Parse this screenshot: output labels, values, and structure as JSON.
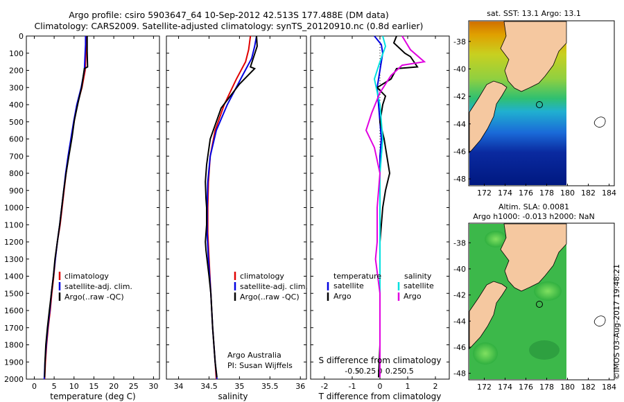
{
  "title_line1": "Argo profile: csiro 5903647_64 10-Sep-2012 42.513S 177.488E (DM data)",
  "title_line2": "Climatology: CARS2009. Satellite-adjusted climatology: synTS_20120910.nc (0.8d earlier)",
  "watermark": "©IMOS 03-Aug-2017 19:48:21",
  "colors": {
    "climatology": "#e00000",
    "satellite": "#0000e0",
    "argo": "#000000",
    "sal_satellite": "#00e0e0",
    "sal_argo": "#e000e0",
    "temp_clim": "#e00000"
  },
  "chart_data": [
    {
      "type": "line",
      "name": "temperature",
      "xlabel": "temperature (deg C)",
      "ylabel": "",
      "xlim": [
        -2,
        31.5
      ],
      "ylim": [
        2000,
        0
      ],
      "xticks": [
        "0",
        "5",
        "10",
        "15",
        "20",
        "25",
        "30"
      ],
      "xtick_values": [
        0,
        5,
        10,
        15,
        20,
        25,
        30
      ],
      "yticks": [
        "0",
        "100",
        "200",
        "300",
        "400",
        "500",
        "600",
        "700",
        "800",
        "900",
        "1000",
        "1100",
        "1200",
        "1300",
        "1400",
        "1500",
        "1600",
        "1700",
        "1800",
        "1900",
        "2000"
      ],
      "ytick_values": [
        0,
        100,
        200,
        300,
        400,
        500,
        600,
        700,
        800,
        900,
        1000,
        1100,
        1200,
        1300,
        1400,
        1500,
        1600,
        1700,
        1800,
        1900,
        2000
      ],
      "legend": [
        "climatology",
        "satellite-adj. clim.",
        "Argo(..raw -QC)"
      ],
      "series": [
        {
          "name": "climatology",
          "color_key": "climatology",
          "points": [
            [
              13.2,
              0
            ],
            [
              13.1,
              50
            ],
            [
              13.0,
              100
            ],
            [
              12.8,
              200
            ],
            [
              12.0,
              300
            ],
            [
              10.8,
              400
            ],
            [
              10.0,
              500
            ],
            [
              9.3,
              600
            ],
            [
              8.6,
              700
            ],
            [
              8.0,
              800
            ],
            [
              7.5,
              900
            ],
            [
              7.0,
              1000
            ],
            [
              6.5,
              1100
            ],
            [
              5.8,
              1200
            ],
            [
              5.3,
              1300
            ],
            [
              4.9,
              1400
            ],
            [
              4.4,
              1500
            ],
            [
              4.0,
              1600
            ],
            [
              3.5,
              1700
            ],
            [
              3.1,
              1800
            ],
            [
              2.8,
              1900
            ],
            [
              2.6,
              2000
            ]
          ]
        },
        {
          "name": "satellite-adj. clim.",
          "color_key": "satellite",
          "points": [
            [
              12.9,
              0
            ],
            [
              12.9,
              50
            ],
            [
              12.8,
              100
            ],
            [
              12.6,
              200
            ],
            [
              11.8,
              300
            ],
            [
              10.7,
              400
            ],
            [
              9.9,
              500
            ],
            [
              9.2,
              600
            ],
            [
              8.5,
              700
            ],
            [
              7.9,
              800
            ],
            [
              7.4,
              900
            ],
            [
              6.9,
              1000
            ],
            [
              6.4,
              1100
            ],
            [
              5.8,
              1200
            ],
            [
              5.3,
              1300
            ],
            [
              4.8,
              1400
            ],
            [
              4.3,
              1500
            ],
            [
              3.9,
              1600
            ],
            [
              3.4,
              1700
            ],
            [
              3.0,
              1800
            ],
            [
              2.7,
              1900
            ],
            [
              2.5,
              2000
            ]
          ]
        },
        {
          "name": "Argo(..raw -QC)",
          "color_key": "argo",
          "points": [
            [
              13.3,
              0
            ],
            [
              13.3,
              90
            ],
            [
              13.4,
              180
            ],
            [
              12.6,
              190
            ],
            [
              11.9,
              300
            ],
            [
              11.0,
              390
            ],
            [
              10.1,
              490
            ],
            [
              9.5,
              590
            ],
            [
              8.7,
              700
            ],
            [
              8.0,
              800
            ],
            [
              7.4,
              900
            ],
            [
              6.9,
              1000
            ],
            [
              6.4,
              1100
            ],
            [
              5.8,
              1200
            ],
            [
              5.2,
              1300
            ],
            [
              4.8,
              1400
            ],
            [
              4.3,
              1500
            ],
            [
              3.8,
              1600
            ],
            [
              3.3,
              1700
            ],
            [
              2.9,
              1800
            ],
            [
              2.7,
              1900
            ],
            [
              2.6,
              1990
            ]
          ]
        }
      ]
    },
    {
      "type": "line",
      "name": "salinity",
      "xlabel": "salinity",
      "xlim": [
        33.8,
        36.1
      ],
      "ylim": [
        2000,
        0
      ],
      "xticks": [
        "34",
        "34.5",
        "35",
        "35.5",
        "36"
      ],
      "xtick_values": [
        34,
        34.5,
        35,
        35.5,
        36
      ],
      "legend": [
        "climatology",
        "satellite-adj. clim.",
        "Argo(..raw -QC)"
      ],
      "note_line1": "Argo Australia",
      "note_line2": "PI: Susan Wijffels",
      "series": [
        {
          "name": "climatology",
          "color_key": "climatology",
          "points": [
            [
              35.18,
              0
            ],
            [
              35.15,
              80
            ],
            [
              35.1,
              150
            ],
            [
              34.95,
              250
            ],
            [
              34.75,
              400
            ],
            [
              34.6,
              550
            ],
            [
              34.52,
              700
            ],
            [
              34.49,
              850
            ],
            [
              34.48,
              1000
            ],
            [
              34.48,
              1150
            ],
            [
              34.5,
              1300
            ],
            [
              34.53,
              1500
            ],
            [
              34.56,
              1700
            ],
            [
              34.6,
              1900
            ],
            [
              34.62,
              2000
            ]
          ]
        },
        {
          "name": "satellite-adj. clim.",
          "color_key": "satellite",
          "points": [
            [
              35.28,
              0
            ],
            [
              35.25,
              60
            ],
            [
              35.2,
              130
            ],
            [
              35.05,
              230
            ],
            [
              34.8,
              400
            ],
            [
              34.62,
              550
            ],
            [
              34.52,
              700
            ],
            [
              34.48,
              850
            ],
            [
              34.47,
              1000
            ],
            [
              34.47,
              1150
            ],
            [
              34.49,
              1300
            ],
            [
              34.53,
              1500
            ],
            [
              34.56,
              1700
            ],
            [
              34.6,
              1900
            ],
            [
              34.63,
              2000
            ]
          ]
        },
        {
          "name": "Argo(..raw -QC)",
          "color_key": "argo",
          "points": [
            [
              35.28,
              0
            ],
            [
              35.29,
              60
            ],
            [
              35.18,
              180
            ],
            [
              35.25,
              190
            ],
            [
              35.0,
              280
            ],
            [
              34.7,
              420
            ],
            [
              34.52,
              600
            ],
            [
              34.46,
              750
            ],
            [
              34.44,
              850
            ],
            [
              34.45,
              950
            ],
            [
              34.46,
              1000
            ],
            [
              34.46,
              1100
            ],
            [
              34.44,
              1200
            ],
            [
              34.45,
              1250
            ],
            [
              34.5,
              1400
            ],
            [
              34.53,
              1500
            ],
            [
              34.56,
              1700
            ],
            [
              34.6,
              1900
            ],
            [
              34.63,
              1990
            ]
          ]
        }
      ]
    },
    {
      "type": "line",
      "name": "difference",
      "xlabel": "T difference from climatology",
      "xlabel2": "S difference from climatology",
      "xlim": [
        -2.5,
        2.5
      ],
      "ylim": [
        2000,
        0
      ],
      "xticks": [
        "-2",
        "-1",
        "0",
        "1",
        "2"
      ],
      "xtick_values": [
        -2,
        -1,
        0,
        1,
        2
      ],
      "sticks": [
        "-0.5",
        "-0.25",
        "0",
        "0.25",
        "0.5"
      ],
      "stick_values": [
        -0.5,
        -0.25,
        0,
        0.25,
        0.5
      ],
      "legend_head_t": "temperature",
      "legend_head_s": "salinity",
      "legend": [
        "satellite",
        "Argo",
        "satellite",
        "Argo"
      ],
      "series": [
        {
          "name": "T satellite",
          "color_key": "satellite",
          "points": [
            [
              -0.2,
              0
            ],
            [
              0.05,
              50
            ],
            [
              0.1,
              100
            ],
            [
              0.0,
              200
            ],
            [
              -0.1,
              300
            ],
            [
              -0.05,
              400
            ],
            [
              0.0,
              500
            ],
            [
              0.05,
              600
            ],
            [
              0.0,
              700
            ],
            [
              0.0,
              800
            ],
            [
              0.0,
              900
            ],
            [
              0.0,
              1000
            ],
            [
              0.0,
              1200
            ],
            [
              0.0,
              1400
            ],
            [
              0.0,
              1600
            ],
            [
              0.0,
              1800
            ],
            [
              0.0,
              1990
            ]
          ]
        },
        {
          "name": "T Argo",
          "color_key": "argo",
          "points": [
            [
              0.6,
              0
            ],
            [
              0.5,
              40
            ],
            [
              0.9,
              100
            ],
            [
              1.1,
              120
            ],
            [
              1.35,
              180
            ],
            [
              0.6,
              190
            ],
            [
              0.4,
              250
            ],
            [
              -0.1,
              300
            ],
            [
              0.2,
              350
            ],
            [
              0.1,
              400
            ],
            [
              0.0,
              500
            ],
            [
              0.15,
              600
            ],
            [
              0.25,
              700
            ],
            [
              0.35,
              800
            ],
            [
              0.2,
              900
            ],
            [
              0.1,
              1000
            ],
            [
              0.0,
              1200
            ],
            [
              0.0,
              1400
            ],
            [
              0.0,
              1600
            ],
            [
              0.0,
              1800
            ],
            [
              -0.05,
              1990
            ]
          ]
        },
        {
          "name": "S satellite",
          "color_key": "sal_satellite",
          "points": [
            [
              0.05,
              0
            ],
            [
              0.1,
              60
            ],
            [
              0.0,
              150
            ],
            [
              -0.1,
              250
            ],
            [
              0.0,
              400
            ],
            [
              0.05,
              600
            ],
            [
              0.0,
              800
            ],
            [
              0.0,
              1000
            ],
            [
              0.0,
              1200
            ],
            [
              0.0,
              1400
            ],
            [
              0.0,
              1600
            ],
            [
              0.0,
              1800
            ],
            [
              0.0,
              1990
            ]
          ]
        },
        {
          "name": "S Argo",
          "color_key": "sal_argo",
          "points": [
            [
              0.4,
              0
            ],
            [
              0.55,
              80
            ],
            [
              0.8,
              150
            ],
            [
              0.4,
              170
            ],
            [
              0.2,
              230
            ],
            [
              0.0,
              330
            ],
            [
              -0.15,
              450
            ],
            [
              -0.25,
              550
            ],
            [
              -0.1,
              650
            ],
            [
              0.0,
              800
            ],
            [
              -0.05,
              1000
            ],
            [
              -0.05,
              1200
            ],
            [
              -0.08,
              1300
            ],
            [
              0.0,
              1500
            ],
            [
              0.0,
              1700
            ],
            [
              0.0,
              1990
            ]
          ]
        }
      ]
    }
  ],
  "maps": [
    {
      "name": "sst-map",
      "title": "sat. SST: 13.1  Argo: 13.1",
      "xticks": [
        "172",
        "174",
        "176",
        "178",
        "180",
        "182",
        "184"
      ],
      "yticks": [
        "-38",
        "-40",
        "-42",
        "-44",
        "-46",
        "-48"
      ],
      "xlim": [
        170.5,
        184.5
      ],
      "ylim": [
        -48.5,
        -36.5
      ],
      "data_xlim": [
        170.5,
        180
      ],
      "float_lon": 177.488,
      "float_lat": -42.513
    },
    {
      "name": "sla-map",
      "title_line1": "Altim. SLA: 0.0081",
      "title_line2": "Argo h1000: -0.013 h2000: NaN",
      "xticks": [
        "172",
        "174",
        "176",
        "178",
        "180",
        "182",
        "184"
      ],
      "yticks": [
        "-38",
        "-40",
        "-42",
        "-44",
        "-46",
        "-48"
      ],
      "xlim": [
        170.5,
        184.5
      ],
      "ylim": [
        -48.5,
        -36.5
      ],
      "data_xlim": [
        170.5,
        180
      ],
      "float_lon": 177.488,
      "float_lat": -42.513
    }
  ]
}
